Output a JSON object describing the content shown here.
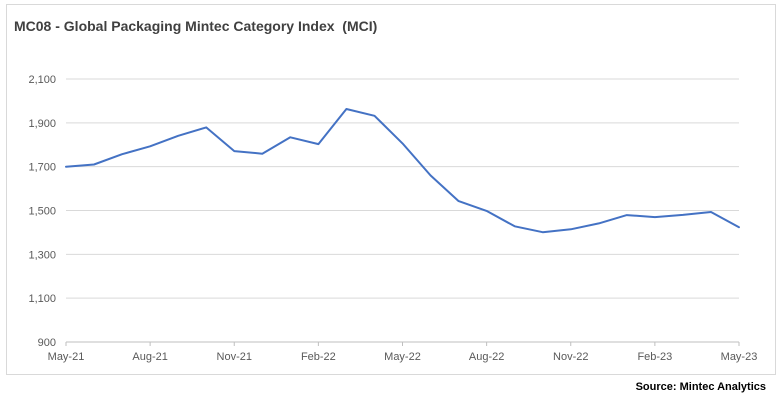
{
  "chart_data": {
    "type": "line",
    "title": "MC08 - Global Packaging Mintec Category Index  (MCI)",
    "xlabel": "",
    "ylabel": "",
    "ylim": [
      900,
      2100
    ],
    "yticks": [
      900,
      1100,
      1300,
      1500,
      1700,
      1900,
      2100
    ],
    "ytick_labels": [
      "900",
      "1,100",
      "1,300",
      "1,500",
      "1,700",
      "1,900",
      "2,100"
    ],
    "xtick_labels": [
      "May-21",
      "Aug-21",
      "Nov-21",
      "Feb-22",
      "May-22",
      "Aug-22",
      "Nov-22",
      "Feb-23",
      "May-23"
    ],
    "x": [
      "May-21",
      "Jun-21",
      "Jul-21",
      "Aug-21",
      "Sep-21",
      "Oct-21",
      "Nov-21",
      "Dec-21",
      "Jan-22",
      "Feb-22",
      "Mar-22",
      "Apr-22",
      "May-22",
      "Jun-22",
      "Jul-22",
      "Aug-22",
      "Sep-22",
      "Oct-22",
      "Nov-22",
      "Dec-22",
      "Jan-23",
      "Feb-23",
      "Mar-23",
      "Apr-23",
      "May-23"
    ],
    "series": [
      {
        "color": "#4472c4",
        "values": [
          1700,
          1710,
          1757,
          1793,
          1841,
          1879,
          1771,
          1759,
          1834,
          1803,
          1963,
          1932,
          1806,
          1660,
          1543,
          1498,
          1428,
          1401,
          1414,
          1441,
          1479,
          1470,
          1480,
          1493,
          1424
        ]
      }
    ],
    "grid": true,
    "source": "Source: Mintec Analytics"
  }
}
